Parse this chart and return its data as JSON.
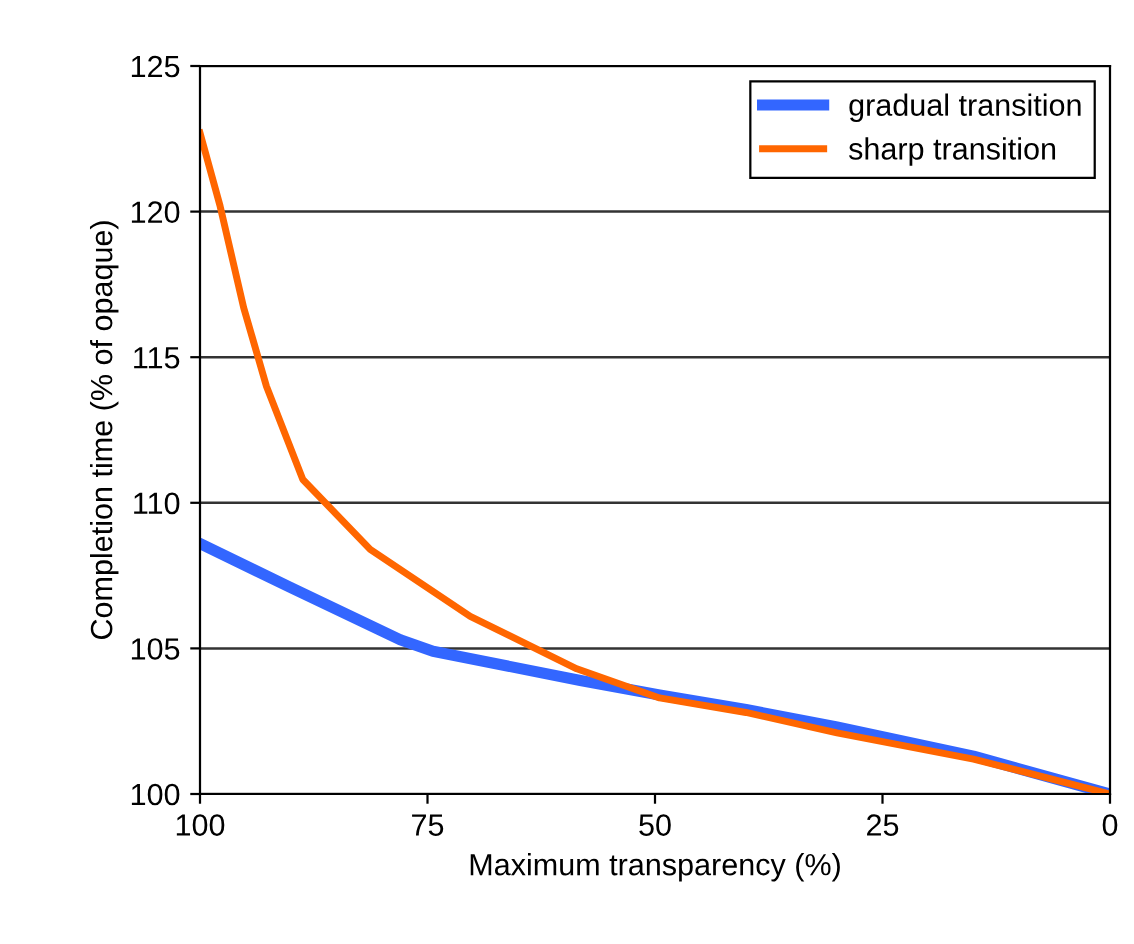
{
  "chart_data": {
    "type": "line",
    "xlabel": "Maximum transparency (%)",
    "ylabel": "Completion time (% of opaque)",
    "xlim": [
      100,
      0
    ],
    "xticks": [
      100,
      75,
      50,
      25,
      0
    ],
    "ylim": [
      100,
      125
    ],
    "yticks": [
      100,
      105,
      110,
      115,
      120,
      125
    ],
    "grid": "y",
    "legend": "top right",
    "marker": "none",
    "line_style": "solid",
    "series": [
      {
        "name": "gradual transition",
        "color": "#3366ff",
        "x": [
          100,
          90.1,
          78,
          74.4,
          58.2,
          49.5,
          40,
          30,
          15,
          0
        ],
        "values": [
          108.6,
          107.1,
          105.3,
          104.9,
          103.9,
          103.4,
          102.9,
          102.3,
          101.3,
          100
        ]
      },
      {
        "name": "sharp transition",
        "color": "#ff6600",
        "x": [
          100,
          97.8,
          95.2,
          92.7,
          88.7,
          81.3,
          70.3,
          58.6,
          49.5,
          40,
          30,
          15,
          0
        ],
        "values": [
          122.7,
          120.2,
          116.7,
          114.0,
          110.8,
          108.4,
          106.1,
          104.3,
          103.3,
          102.8,
          102.1,
          101.2,
          100
        ]
      }
    ]
  }
}
